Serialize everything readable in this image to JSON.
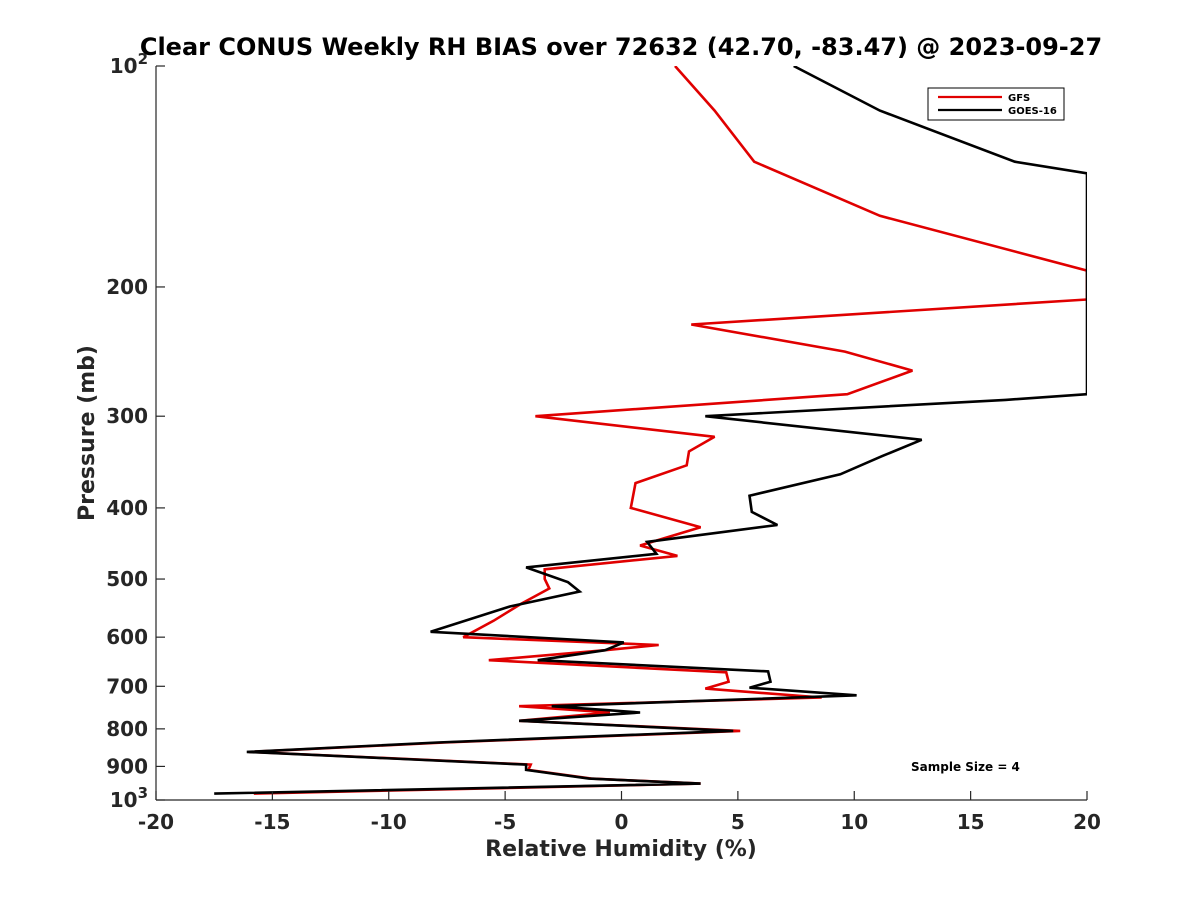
{
  "chart_data": {
    "type": "line",
    "title": "Clear CONUS Weekly RH BIAS over 72632 (42.70, -83.47) @ 2023-09-27",
    "xlabel": "Relative Humidity (%)",
    "ylabel": "Pressure (mb)",
    "xlim": [
      -20,
      20
    ],
    "ylim": [
      1000,
      100
    ],
    "y_scale": "log",
    "y_reversed": true,
    "x_ticks": [
      "-20",
      "-15",
      "-10",
      "-5",
      "0",
      "5",
      "10",
      "15",
      "20"
    ],
    "y_ticks": [
      {
        "value": 100,
        "base": "10",
        "exp": "2"
      },
      {
        "value": 200,
        "label": "200"
      },
      {
        "value": 300,
        "label": "300"
      },
      {
        "value": 400,
        "label": "400"
      },
      {
        "value": 500,
        "label": "500"
      },
      {
        "value": 600,
        "label": "600"
      },
      {
        "value": 700,
        "label": "700"
      },
      {
        "value": 800,
        "label": "800"
      },
      {
        "value": 900,
        "label": "900"
      },
      {
        "value": 1000,
        "base": "10",
        "exp": "3"
      }
    ],
    "legend_position": "top-right",
    "grid": false,
    "annotation": "Sample Size = 4",
    "series": [
      {
        "name": "GFS",
        "color": "#e00000",
        "points": [
          {
            "x": 2.3,
            "p": 100
          },
          {
            "x": 4.0,
            "p": 115
          },
          {
            "x": 5.7,
            "p": 135
          },
          {
            "x": 11.1,
            "p": 160
          },
          {
            "x": 20.0,
            "p": 190
          },
          {
            "x": 20.0,
            "p": 208
          },
          {
            "x": 3.0,
            "p": 225
          },
          {
            "x": 9.6,
            "p": 245
          },
          {
            "x": 12.5,
            "p": 260
          },
          {
            "x": 9.7,
            "p": 280
          },
          {
            "x": -3.7,
            "p": 300
          },
          {
            "x": 4.0,
            "p": 320
          },
          {
            "x": 2.9,
            "p": 335
          },
          {
            "x": 2.8,
            "p": 350
          },
          {
            "x": 0.6,
            "p": 370
          },
          {
            "x": 0.4,
            "p": 400
          },
          {
            "x": 3.4,
            "p": 425
          },
          {
            "x": 0.8,
            "p": 450
          },
          {
            "x": 2.4,
            "p": 465
          },
          {
            "x": -3.3,
            "p": 485
          },
          {
            "x": -3.3,
            "p": 500
          },
          {
            "x": -3.1,
            "p": 515
          },
          {
            "x": -4.3,
            "p": 540
          },
          {
            "x": -5.5,
            "p": 570
          },
          {
            "x": -6.8,
            "p": 600
          },
          {
            "x": 1.6,
            "p": 615
          },
          {
            "x": -0.7,
            "p": 625
          },
          {
            "x": -5.7,
            "p": 645
          },
          {
            "x": 4.5,
            "p": 670
          },
          {
            "x": 4.6,
            "p": 690
          },
          {
            "x": 3.6,
            "p": 705
          },
          {
            "x": 8.6,
            "p": 725
          },
          {
            "x": -4.4,
            "p": 745
          },
          {
            "x": -0.5,
            "p": 760
          },
          {
            "x": -4.4,
            "p": 780
          },
          {
            "x": 5.1,
            "p": 805
          },
          {
            "x": -7.6,
            "p": 835
          },
          {
            "x": -16.0,
            "p": 860
          },
          {
            "x": -3.9,
            "p": 895
          },
          {
            "x": -4.0,
            "p": 910
          },
          {
            "x": -1.3,
            "p": 935
          },
          {
            "x": 3.4,
            "p": 950
          },
          {
            "x": -15.8,
            "p": 980
          }
        ]
      },
      {
        "name": "GOES-16",
        "color": "#000000",
        "points": [
          {
            "x": 7.4,
            "p": 100
          },
          {
            "x": 11.1,
            "p": 115
          },
          {
            "x": 16.9,
            "p": 135
          },
          {
            "x": 20.0,
            "p": 140
          },
          {
            "x": 20.0,
            "p": 280
          },
          {
            "x": 16.5,
            "p": 285
          },
          {
            "x": 3.6,
            "p": 300
          },
          {
            "x": 12.9,
            "p": 323
          },
          {
            "x": 11.2,
            "p": 340
          },
          {
            "x": 9.4,
            "p": 360
          },
          {
            "x": 5.5,
            "p": 385
          },
          {
            "x": 5.6,
            "p": 405
          },
          {
            "x": 6.7,
            "p": 422
          },
          {
            "x": 1.1,
            "p": 445
          },
          {
            "x": 1.5,
            "p": 462
          },
          {
            "x": -4.1,
            "p": 482
          },
          {
            "x": -2.3,
            "p": 505
          },
          {
            "x": -1.8,
            "p": 520
          },
          {
            "x": -4.8,
            "p": 545
          },
          {
            "x": -8.2,
            "p": 590
          },
          {
            "x": 0.1,
            "p": 610
          },
          {
            "x": -0.7,
            "p": 625
          },
          {
            "x": -3.6,
            "p": 645
          },
          {
            "x": 6.3,
            "p": 668
          },
          {
            "x": 6.4,
            "p": 690
          },
          {
            "x": 5.5,
            "p": 703
          },
          {
            "x": 10.1,
            "p": 720
          },
          {
            "x": -3.0,
            "p": 745
          },
          {
            "x": 0.8,
            "p": 760
          },
          {
            "x": -4.4,
            "p": 780
          },
          {
            "x": 4.8,
            "p": 805
          },
          {
            "x": -7.9,
            "p": 835
          },
          {
            "x": -16.1,
            "p": 860
          },
          {
            "x": -4.1,
            "p": 895
          },
          {
            "x": -4.1,
            "p": 910
          },
          {
            "x": -1.4,
            "p": 935
          },
          {
            "x": 3.4,
            "p": 950
          },
          {
            "x": -17.5,
            "p": 980
          }
        ]
      }
    ]
  }
}
